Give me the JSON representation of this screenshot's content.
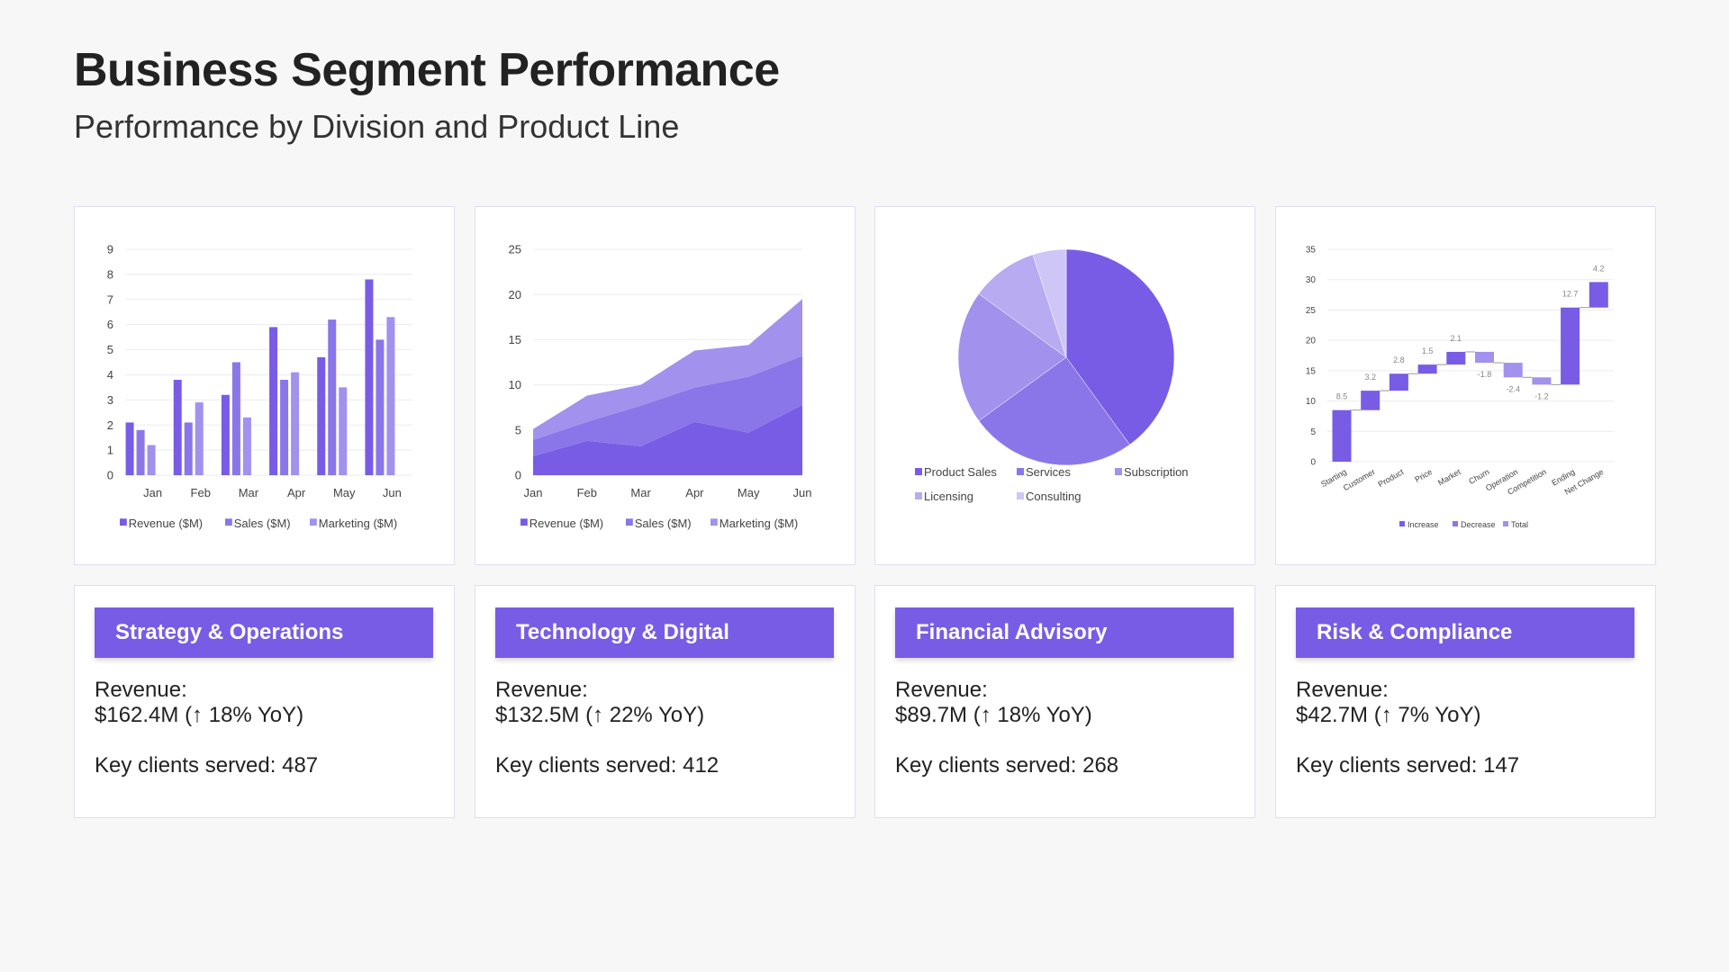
{
  "header": {
    "title": "Business Segment Performance",
    "subtitle": "Performance by Division and Product Line"
  },
  "colors": {
    "c1": "#785ce6",
    "c2": "#8b76e9",
    "c3": "#a291ed",
    "c4": "#b8abf1",
    "c5": "#cec6f6",
    "grid": "#ececf2",
    "axis": "#444444",
    "label": "#888888"
  },
  "chart_data": [
    {
      "type": "bar",
      "title": "",
      "categories": [
        "Jan",
        "Feb",
        "Mar",
        "Apr",
        "May",
        "Jun"
      ],
      "series": [
        {
          "name": "Revenue ($M)",
          "values": [
            2.1,
            3.8,
            3.2,
            5.9,
            4.7,
            7.8
          ]
        },
        {
          "name": "Sales ($M)",
          "values": [
            1.8,
            2.1,
            4.5,
            3.8,
            6.2,
            5.4
          ]
        },
        {
          "name": "Marketing ($M)",
          "values": [
            1.2,
            2.9,
            2.3,
            4.1,
            3.5,
            6.3
          ]
        }
      ],
      "yticks": [
        "0",
        "1",
        "2",
        "3",
        "4",
        "5",
        "6",
        "7",
        "8",
        "9"
      ],
      "ylim": [
        0,
        9
      ],
      "grid": true,
      "legend": "bottom"
    },
    {
      "type": "area",
      "stacked": true,
      "title": "",
      "categories": [
        "Jan",
        "Feb",
        "Mar",
        "Apr",
        "May",
        "Jun"
      ],
      "series": [
        {
          "name": "Revenue ($M)",
          "values": [
            2.1,
            3.8,
            3.2,
            5.9,
            4.7,
            7.8
          ]
        },
        {
          "name": "Sales ($M)",
          "values": [
            1.8,
            2.1,
            4.5,
            3.8,
            6.2,
            5.4
          ]
        },
        {
          "name": "Marketing ($M)",
          "values": [
            1.2,
            2.9,
            2.3,
            4.1,
            3.5,
            6.3
          ]
        }
      ],
      "yticks": [
        "0",
        "5",
        "10",
        "15",
        "20",
        "25"
      ],
      "ylim": [
        0,
        25
      ],
      "grid": true,
      "legend": "bottom"
    },
    {
      "type": "pie",
      "title": "",
      "labels": [
        "Product Sales",
        "Services",
        "Subscription",
        "Licensing",
        "Consulting"
      ],
      "values": [
        40,
        25,
        20,
        10,
        5
      ],
      "legend": "bottom"
    },
    {
      "type": "bar",
      "subtype": "waterfall",
      "title": "",
      "categories": [
        "Starting",
        "Customer",
        "Product",
        "Price",
        "Market",
        "Churn",
        "Operation",
        "Competition",
        "Ending",
        "Net Change"
      ],
      "values": [
        8.5,
        3.2,
        2.8,
        1.5,
        2.1,
        -1.8,
        -2.4,
        -1.2,
        12.7,
        4.2
      ],
      "value_labels": [
        "8.5",
        "3.2",
        "2.8",
        "1.5",
        "2.1",
        "-1.8",
        "-2.4",
        "-1.2",
        "12.7",
        "4.2"
      ],
      "yticks": [
        "0",
        "5",
        "10",
        "15",
        "20",
        "25",
        "30",
        "35"
      ],
      "ylim": [
        0,
        35
      ],
      "grid": true,
      "legend_entries": [
        "Increase",
        "Decrease",
        "Total"
      ],
      "legend": "bottom"
    }
  ],
  "segments": [
    {
      "name": "Strategy & Operations",
      "revenue_label": "Revenue:",
      "revenue": "$162.4M (↑ 18% YoY)",
      "clients": "Key clients served: 487"
    },
    {
      "name": "Technology & Digital",
      "revenue_label": "Revenue:",
      "revenue": "$132.5M (↑ 22% YoY)",
      "clients": "Key clients served: 412"
    },
    {
      "name": "Financial Advisory",
      "revenue_label": "Revenue:",
      "revenue": "$89.7M (↑ 18% YoY)",
      "clients": "Key clients served: 268"
    },
    {
      "name": "Risk & Compliance",
      "revenue_label": "Revenue:",
      "revenue": "$42.7M (↑ 7% YoY)",
      "clients": "Key clients served: 147"
    }
  ]
}
